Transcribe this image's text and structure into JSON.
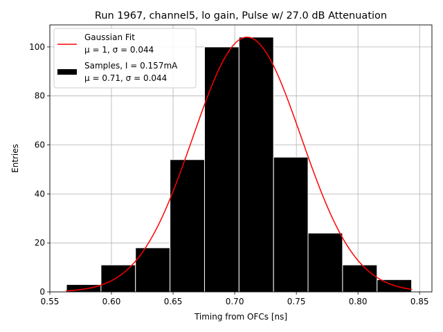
{
  "chart_data": {
    "type": "bar",
    "title": "Run 1967, channel5, lo gain, Pulse w/ 27.0 dB Attenuation",
    "xlabel": "Timing from OFCs [ns]",
    "ylabel": "Entries",
    "xlim": [
      0.55,
      0.86
    ],
    "ylim": [
      0,
      109
    ],
    "xticks": [
      {
        "value": 0.55,
        "label": "0.55"
      },
      {
        "value": 0.6,
        "label": "0.60"
      },
      {
        "value": 0.65,
        "label": "0.65"
      },
      {
        "value": 0.7,
        "label": "0.70"
      },
      {
        "value": 0.75,
        "label": "0.75"
      },
      {
        "value": 0.8,
        "label": "0.80"
      },
      {
        "value": 0.85,
        "label": "0.85"
      }
    ],
    "yticks": [
      {
        "value": 0,
        "label": "0"
      },
      {
        "value": 20,
        "label": "20"
      },
      {
        "value": 40,
        "label": "40"
      },
      {
        "value": 60,
        "label": "60"
      },
      {
        "value": 80,
        "label": "80"
      },
      {
        "value": 100,
        "label": "100"
      }
    ],
    "grid": true,
    "histogram": {
      "name": "Samples",
      "bin_edges": [
        0.5635,
        0.5915,
        0.6195,
        0.6475,
        0.6755,
        0.7035,
        0.7315,
        0.7595,
        0.7875,
        0.8155,
        0.8435
      ],
      "counts": [
        3,
        11,
        18,
        54,
        100,
        104,
        55,
        24,
        11,
        5
      ],
      "color": "#000000",
      "edge_color": "#ffffff"
    },
    "fit": {
      "name": "Gaussian Fit",
      "type": "gaussian",
      "amplitude": 104,
      "mu": 0.71,
      "sigma": 0.044,
      "x_range": [
        0.563,
        0.844
      ],
      "color": "#ff0000"
    },
    "legend": {
      "placement": "top-left",
      "entries": [
        {
          "line1": "Gaussian Fit",
          "line2": "μ = 1, σ = 0.044",
          "marker": "line",
          "color": "#ff0000"
        },
        {
          "line1": "Samples, I = 0.157mA",
          "line2": "μ = 0.71, σ = 0.044",
          "marker": "patch",
          "color": "#000000"
        }
      ]
    }
  }
}
